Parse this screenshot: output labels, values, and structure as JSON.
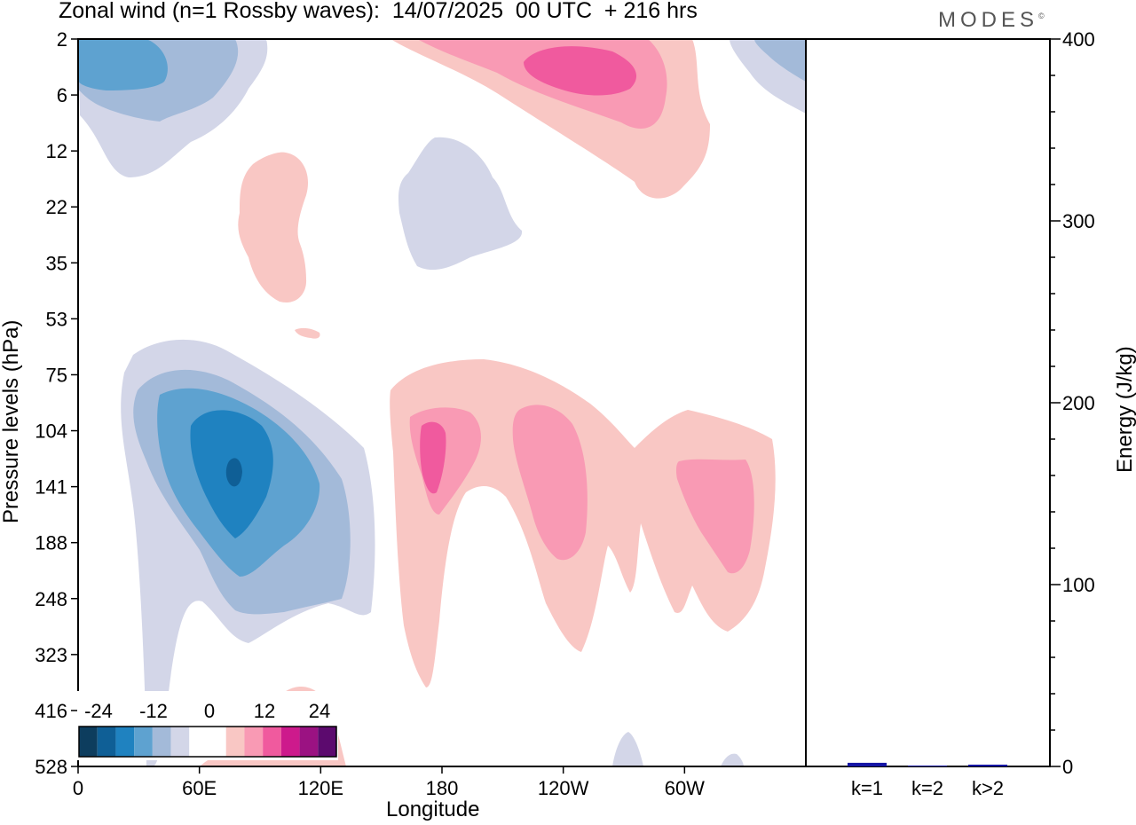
{
  "title": "Zonal wind (n=1 Rossby waves):  14/07/2025  00 UTC  + 216 hrs",
  "logo": "MODES",
  "logo_mark": "©",
  "colors": {
    "blue": [
      "#0d3d5e",
      "#0f5f96",
      "#1f82c0",
      "#5ea2d0",
      "#a3bad9",
      "#d3d6e8"
    ],
    "pink": [
      "#f9c7c4",
      "#f99ab4",
      "#f05a9e",
      "#cd1a8c",
      "#9b1282",
      "#5c0a6e"
    ],
    "bar": "#1515a5"
  },
  "chart_data": [
    {
      "type": "heatmap",
      "subtype": "filled-contour",
      "xlabel": "Longitude",
      "ylabel": "Pressure levels (hPa)",
      "x_ticks": [
        "0",
        "60E",
        "120E",
        "180",
        "120W",
        "60W"
      ],
      "y_ticks": [
        "2",
        "6",
        "12",
        "22",
        "35",
        "53",
        "75",
        "104",
        "141",
        "188",
        "248",
        "323",
        "416",
        "528"
      ],
      "colorbar_labels": [
        "-24",
        "-12",
        "0",
        "12",
        "24"
      ],
      "contour_levels": [
        -30,
        -24,
        -18,
        -12,
        -6,
        0,
        6,
        12,
        18,
        24,
        30
      ],
      "regions": [
        {
          "sign": "negative",
          "peak": -24,
          "lon": 75,
          "hPa": 125
        },
        {
          "sign": "negative",
          "peak": -12,
          "lon": 25,
          "hPa": 4
        },
        {
          "sign": "negative",
          "peak": -6,
          "lon": 355,
          "hPa": 4
        },
        {
          "sign": "negative",
          "peak": -6,
          "lon": 170,
          "hPa": 25
        },
        {
          "sign": "positive",
          "peak": 18,
          "lon": 230,
          "hPa": 4
        },
        {
          "sign": "positive",
          "peak": 18,
          "lon": 173,
          "hPa": 125
        },
        {
          "sign": "positive",
          "peak": 12,
          "lon": 217,
          "hPa": 125
        },
        {
          "sign": "positive",
          "peak": 12,
          "lon": 305,
          "hPa": 150
        },
        {
          "sign": "positive",
          "peak": 6,
          "lon": 85,
          "hPa": 25
        },
        {
          "sign": "positive",
          "peak": 6,
          "lon": 115,
          "hPa": 480
        }
      ]
    },
    {
      "type": "bar",
      "categories": [
        "k=1",
        "k=2",
        "k>2"
      ],
      "values": [
        2,
        0.5,
        1
      ],
      "ylabel": "Energy (J/kg)",
      "ylim": [
        0,
        400
      ],
      "y_ticks": [
        "0",
        "100",
        "200",
        "300",
        "400"
      ]
    }
  ]
}
